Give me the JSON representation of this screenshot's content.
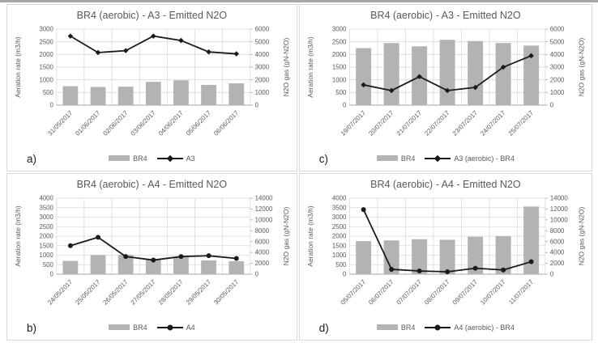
{
  "colors": {
    "bar": "#b3b3b3",
    "line": "#1a1a1a",
    "grid": "#d9d9d9",
    "axis": "#a6a6a6",
    "text": "#595959",
    "panel_border": "#d9d9d9",
    "top_strip": "#a6a6a6"
  },
  "chart_data": [
    {
      "type": "bar",
      "panel_label": "a)",
      "title": "BR4 (aerobic) - A3 - Emitted N2O",
      "categories": [
        "31/05/2017",
        "01/06/2017",
        "02/06/2017",
        "03/06/2017",
        "04/06/2017",
        "05/06/2017",
        "06/06/2017"
      ],
      "series": [
        {
          "name": "BR4",
          "type": "bar",
          "axis": "left",
          "values": [
            750,
            720,
            730,
            920,
            980,
            800,
            860
          ]
        },
        {
          "name": "A3",
          "type": "line",
          "axis": "right",
          "marker": "diamond",
          "values": [
            5450,
            4150,
            4300,
            5450,
            5100,
            4200,
            4050
          ]
        }
      ],
      "left_axis": {
        "label": "Aeration rate (m3/h)",
        "min": 0,
        "max": 3000,
        "step": 500
      },
      "right_axis": {
        "label": "N2O gas (gN-N2O)",
        "min": 0,
        "max": 6000,
        "step": 1000
      },
      "legend": {
        "bar_label": "BR4",
        "line_label": "A3"
      },
      "grid_on": true,
      "legend_position": "bottom"
    },
    {
      "type": "bar",
      "panel_label": "c)",
      "title": "BR4 (aerobic) - A3 - Emitted N2O",
      "categories": [
        "19/07/2017",
        "20/07/2017",
        "21/07/2017",
        "22/07/2017",
        "23/07/2017",
        "24/07/2017",
        "25/07/2017"
      ],
      "series": [
        {
          "name": "BR4",
          "type": "bar",
          "axis": "left",
          "values": [
            2250,
            2450,
            2320,
            2580,
            2530,
            2450,
            2350
          ]
        },
        {
          "name": "A3 (aerobic) - BR4",
          "type": "line",
          "axis": "right",
          "marker": "diamond",
          "values": [
            1600,
            1150,
            2250,
            1150,
            1400,
            3000,
            3900
          ]
        }
      ],
      "left_axis": {
        "label": "Aeration rate (m3/h)",
        "min": 0,
        "max": 3000,
        "step": 500
      },
      "right_axis": {
        "label": "N2O gas (gN-N2O)",
        "min": 0,
        "max": 6000,
        "step": 1000
      },
      "legend": {
        "bar_label": "BR4",
        "line_label": "A3 (aerobic) - BR4"
      },
      "grid_on": true,
      "legend_position": "bottom"
    },
    {
      "type": "bar",
      "panel_label": "b)",
      "title": "BR4 (aerobic) - A4 - Emitted N2O",
      "categories": [
        "24/05/2017",
        "25/05/2017",
        "26/05/2017",
        "27/05/2017",
        "28/05/2017",
        "29/05/2017",
        "30/05/2017"
      ],
      "series": [
        {
          "name": "BR4",
          "type": "bar",
          "axis": "left",
          "values": [
            700,
            1010,
            1020,
            800,
            900,
            730,
            680
          ]
        },
        {
          "name": "A4",
          "type": "line",
          "axis": "right",
          "marker": "circle",
          "values": [
            5250,
            6800,
            3250,
            2600,
            3250,
            3400,
            2900
          ]
        }
      ],
      "left_axis": {
        "label": "Aeration rate (m3/h)",
        "min": 0,
        "max": 4000,
        "step": 500
      },
      "right_axis": {
        "label": "N2O gas (gN-N2O)",
        "min": 0,
        "max": 14000,
        "step": 2000
      },
      "legend": {
        "bar_label": "BR4",
        "line_label": "A4"
      },
      "grid_on": true,
      "legend_position": "bottom"
    },
    {
      "type": "bar",
      "panel_label": "d)",
      "title": "BR4 (aerobic) - A4 - Emitted N2O",
      "categories": [
        "05/07/2017",
        "06/07/2017",
        "07/07/2017",
        "08/07/2017",
        "09/07/2017",
        "10/07/2017",
        "11/07/2017"
      ],
      "series": [
        {
          "name": "BR4",
          "type": "bar",
          "axis": "left",
          "values": [
            1740,
            1780,
            1840,
            1810,
            1970,
            2000,
            3560
          ]
        },
        {
          "name": "A4 (aerobic) - BR4",
          "type": "line",
          "axis": "right",
          "marker": "circle",
          "values": [
            11900,
            900,
            600,
            450,
            1100,
            780,
            2300
          ]
        }
      ],
      "left_axis": {
        "label": "Aeration rate (m3/h)",
        "min": 0,
        "max": 4000,
        "step": 500
      },
      "right_axis": {
        "label": "N2O gas (gN-N2O)",
        "min": 0,
        "max": 14000,
        "step": 2000
      },
      "legend": {
        "bar_label": "BR4",
        "line_label": "A4 (aerobic) - BR4"
      },
      "grid_on": true,
      "legend_position": "bottom"
    }
  ]
}
